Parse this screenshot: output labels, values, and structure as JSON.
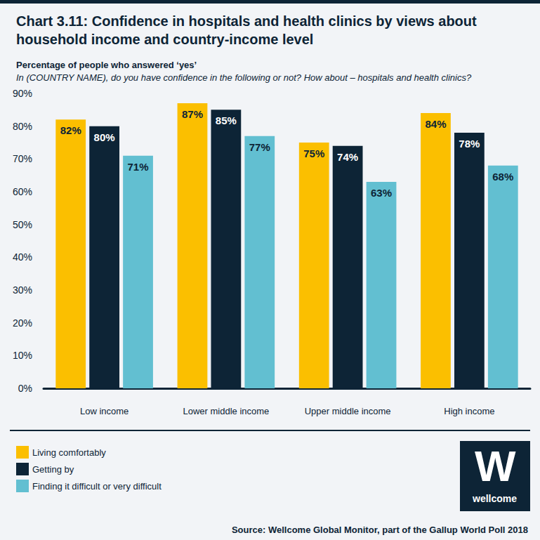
{
  "chart_data": {
    "type": "bar",
    "title": "Chart 3.11: Confidence in hospitals and health clinics by views about household income and country-income level",
    "subtitle": "Percentage of people who answered ‘yes’",
    "question": "In (COUNTRY NAME), do you have confidence in the following or not? How about – hospitals and health clinics?",
    "source": [
      "Source: ",
      "Wellcome Global Monitor, part of the Gallup World Poll 2018"
    ],
    "logo": {
      "mark": "W",
      "text": "wellcome"
    },
    "categories": [
      "Low income",
      "Lower middle income",
      "Upper middle income",
      "High income"
    ],
    "series": [
      {
        "name": "Living comfortably",
        "color": "#fbbf00",
        "values": [
          82,
          87,
          75,
          84
        ],
        "value_labels": [
          "82%",
          "87%",
          "75%",
          "84%"
        ]
      },
      {
        "name": "Getting by",
        "color": "#0d2436",
        "values": [
          80,
          85,
          74,
          78
        ],
        "value_labels": [
          "80%",
          "85%",
          "74%",
          "78%"
        ]
      },
      {
        "name": "Finding it difficult or very difficult",
        "color": "#62bfd1",
        "values": [
          71,
          77,
          63,
          68
        ],
        "value_labels": [
          "71%",
          "77%",
          "63%",
          "68%"
        ]
      }
    ],
    "ylim": [
      0,
      90
    ],
    "yticks": [
      {
        "value": 0,
        "label": "0%"
      },
      {
        "value": 10,
        "label": "10%"
      },
      {
        "value": 20,
        "label": "20%"
      },
      {
        "value": 30,
        "label": "30%"
      },
      {
        "value": 40,
        "label": "40%"
      },
      {
        "value": 50,
        "label": "50%"
      },
      {
        "value": 60,
        "label": "60%"
      },
      {
        "value": 70,
        "label": "70%"
      },
      {
        "value": 80,
        "label": "80%"
      },
      {
        "value": 90,
        "label": "90%"
      }
    ],
    "grid": false,
    "legend": "bottom-left",
    "data_labels": true
  }
}
